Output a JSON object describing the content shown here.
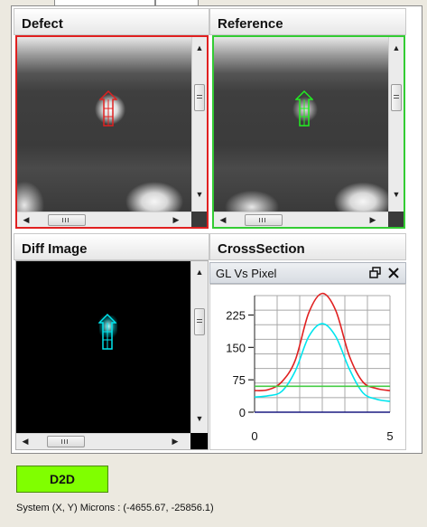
{
  "panels": {
    "defect": {
      "title": "Defect",
      "border_color": "#e02020"
    },
    "reference": {
      "title": "Reference",
      "border_color": "#33cc33"
    },
    "diff": {
      "title": "Diff Image",
      "marker_color": "#00e5ee"
    },
    "cross_section": {
      "title": "CrossSection",
      "sub_title": "GL Vs Pixel"
    }
  },
  "icons": {
    "restore": "restore-window-icon",
    "close": "close-icon"
  },
  "chart_data": {
    "type": "line",
    "title": "GL Vs Pixel",
    "x_ticks": [
      "0",
      "5"
    ],
    "y_ticks": [
      "0",
      "75",
      "150",
      "225"
    ],
    "xlim": [
      0,
      5
    ],
    "ylim": [
      0,
      270
    ],
    "grid": true,
    "series": [
      {
        "color": "#e02020",
        "x": [
          0,
          0.5,
          1,
          1.5,
          2,
          2.5,
          3,
          3.5,
          4,
          4.5,
          5
        ],
        "y": [
          50,
          52,
          70,
          120,
          230,
          275,
          235,
          130,
          70,
          55,
          50
        ]
      },
      {
        "color": "#00e5ee",
        "x": [
          0,
          0.5,
          1,
          1.5,
          2,
          2.5,
          3,
          3.5,
          4,
          4.5,
          5
        ],
        "y": [
          35,
          38,
          48,
          95,
          175,
          205,
          175,
          100,
          45,
          30,
          25
        ]
      },
      {
        "color": "#44cc44",
        "x": [
          0,
          5
        ],
        "y": [
          60,
          60
        ]
      },
      {
        "color": "#1a1a80",
        "x": [
          0,
          5
        ],
        "y": [
          0,
          0
        ]
      }
    ]
  },
  "toolbar": {
    "d2d_label": "D2D",
    "d2d_color": "#80ff00"
  },
  "status": {
    "text": "System (X, Y) Microns : (-4655.67, -25856.1)"
  }
}
